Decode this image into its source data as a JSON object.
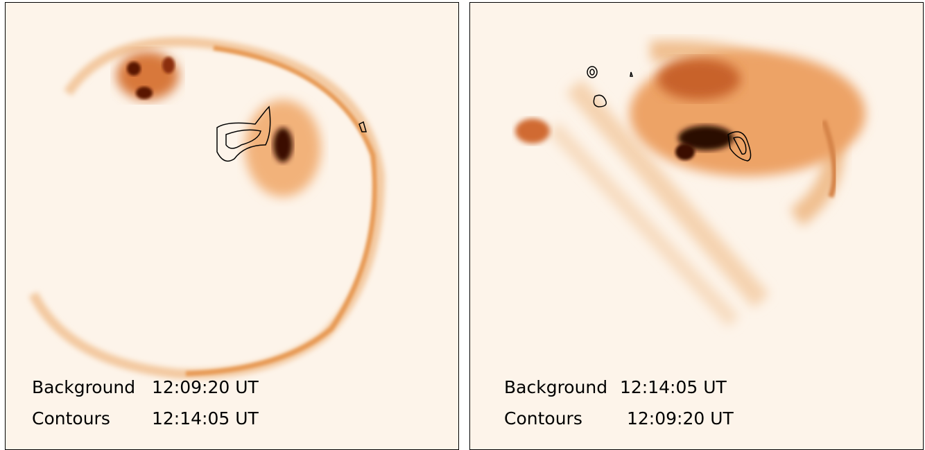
{
  "panels": [
    {
      "rows": [
        {
          "label": "Background",
          "time": "12:09:20 UT"
        },
        {
          "label": "Contours",
          "time": "12:14:05 UT"
        }
      ]
    },
    {
      "rows": [
        {
          "label": "Background",
          "time": "12:14:05 UT"
        },
        {
          "label": "Contours",
          "time": "12:09:20 UT"
        }
      ]
    }
  ]
}
